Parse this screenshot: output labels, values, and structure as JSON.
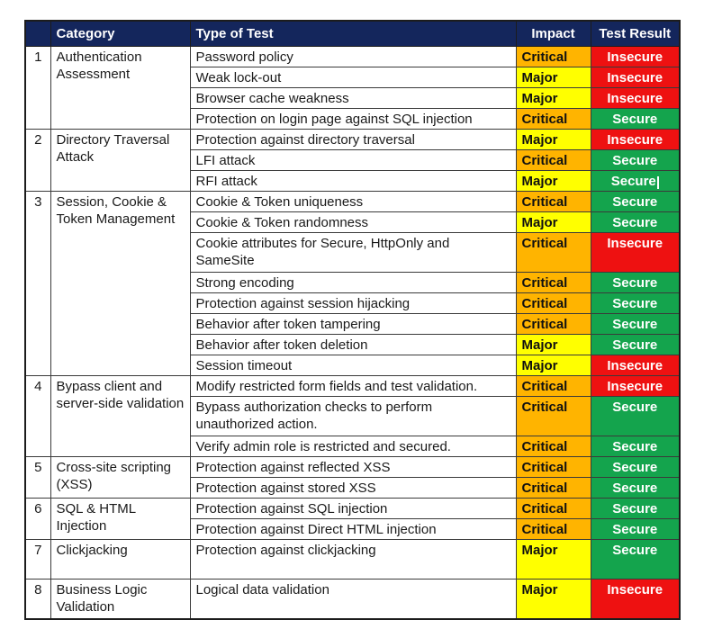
{
  "colors": {
    "header_bg": "#14265c",
    "header_text": "#ffffff",
    "impact_critical": "#ffb400",
    "impact_major": "#ffff00",
    "result_secure": "#14a44d",
    "result_insecure": "#ee1111"
  },
  "table": {
    "headers": [
      "",
      "Category",
      "Type of Test",
      "Impact",
      "Test Result"
    ],
    "groups": [
      {
        "num": "1",
        "category": "Authentication Assessment",
        "rows": [
          {
            "test": "Password policy",
            "impact": "Critical",
            "result": "Insecure"
          },
          {
            "test": "Weak lock-out",
            "impact": "Major",
            "result": "Insecure"
          },
          {
            "test": "Browser cache weakness",
            "impact": "Major",
            "result": "Insecure"
          },
          {
            "test": "Protection on login page against SQL injection",
            "impact": "Critical",
            "result": "Secure"
          }
        ]
      },
      {
        "num": "2",
        "category": "Directory Traversal Attack",
        "rows": [
          {
            "test": "Protection against directory traversal",
            "impact": "Major",
            "result": "Insecure"
          },
          {
            "test": "LFI attack",
            "impact": "Critical",
            "result": "Secure"
          },
          {
            "test": "RFI attack",
            "impact": "Major",
            "result": "Secure",
            "caret": true
          }
        ]
      },
      {
        "num": "3",
        "category": "Session, Cookie & Token Management",
        "rows": [
          {
            "test": "Cookie & Token uniqueness",
            "impact": "Critical",
            "result": "Secure"
          },
          {
            "test": "Cookie & Token randomness",
            "impact": "Major",
            "result": "Secure"
          },
          {
            "test": "Cookie attributes for Secure, HttpOnly and SameSite",
            "impact": "Critical",
            "result": "Insecure",
            "tall": true
          },
          {
            "test": "Strong encoding",
            "impact": "Critical",
            "result": "Secure"
          },
          {
            "test": "Protection against session hijacking",
            "impact": "Critical",
            "result": "Secure"
          },
          {
            "test": "Behavior after token tampering",
            "impact": "Critical",
            "result": "Secure"
          },
          {
            "test": "Behavior after token deletion",
            "impact": "Major",
            "result": "Secure"
          },
          {
            "test": "Session timeout",
            "impact": "Major",
            "result": "Insecure"
          }
        ]
      },
      {
        "num": "4",
        "category": "Bypass client and server-side validation",
        "rows": [
          {
            "test": "Modify restricted form fields and test validation.",
            "impact": "Critical",
            "result": "Insecure"
          },
          {
            "test": "Bypass authorization checks to perform unauthorized action.",
            "impact": "Critical",
            "result": "Secure",
            "tall": true
          },
          {
            "test": "Verify admin role is restricted and secured.",
            "impact": "Critical",
            "result": "Secure"
          }
        ]
      },
      {
        "num": "5",
        "category": "Cross-site scripting (XSS)",
        "rows": [
          {
            "test": "Protection against reflected XSS",
            "impact": "Critical",
            "result": "Secure"
          },
          {
            "test": "Protection against stored XSS",
            "impact": "Critical",
            "result": "Secure"
          }
        ]
      },
      {
        "num": "6",
        "category": "SQL & HTML Injection",
        "rows": [
          {
            "test": "Protection against SQL injection",
            "impact": "Critical",
            "result": "Secure"
          },
          {
            "test": "Protection against Direct HTML injection",
            "impact": "Critical",
            "result": "Secure"
          }
        ]
      },
      {
        "num": "7",
        "category": "Clickjacking",
        "rows": [
          {
            "test": "Protection against clickjacking",
            "impact": "Major",
            "result": "Secure",
            "tall": true
          }
        ]
      },
      {
        "num": "8",
        "category": "Business Logic Validation",
        "rows": [
          {
            "test": "Logical data validation",
            "impact": "Major",
            "result": "Insecure",
            "tall": true
          }
        ]
      }
    ]
  }
}
